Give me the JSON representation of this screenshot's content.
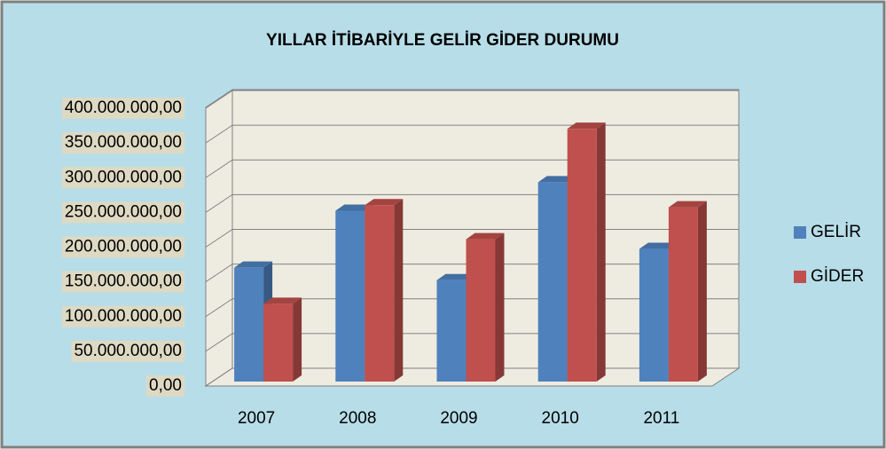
{
  "chart_data": {
    "type": "bar3d",
    "title": "YILLAR İTİBARİYLE GELİR GİDER DURUMU",
    "categories": [
      "2007",
      "2008",
      "2009",
      "2010",
      "2011"
    ],
    "series": [
      {
        "name": "GELİR",
        "color": "#4f81bd",
        "values": [
          164000000,
          246000000,
          146000000,
          287000000,
          191000000
        ]
      },
      {
        "name": "GİDER",
        "color": "#c0504d",
        "values": [
          112000000,
          254000000,
          205000000,
          364000000,
          251000000
        ]
      }
    ],
    "ylim": [
      0,
      400000000
    ],
    "yticks": [
      {
        "value": 0,
        "label": "0,00"
      },
      {
        "value": 50000000,
        "label": "50.000.000,00"
      },
      {
        "value": 100000000,
        "label": "100.000.000,00"
      },
      {
        "value": 150000000,
        "label": "150.000.000,00"
      },
      {
        "value": 200000000,
        "label": "200.000.000,00"
      },
      {
        "value": 250000000,
        "label": "250.000.000,00"
      },
      {
        "value": 300000000,
        "label": "300.000.000,00"
      },
      {
        "value": 350000000,
        "label": "350.000.000,00"
      },
      {
        "value": 400000000,
        "label": "400.000.000,00"
      }
    ],
    "grid": true,
    "legend": "right"
  }
}
